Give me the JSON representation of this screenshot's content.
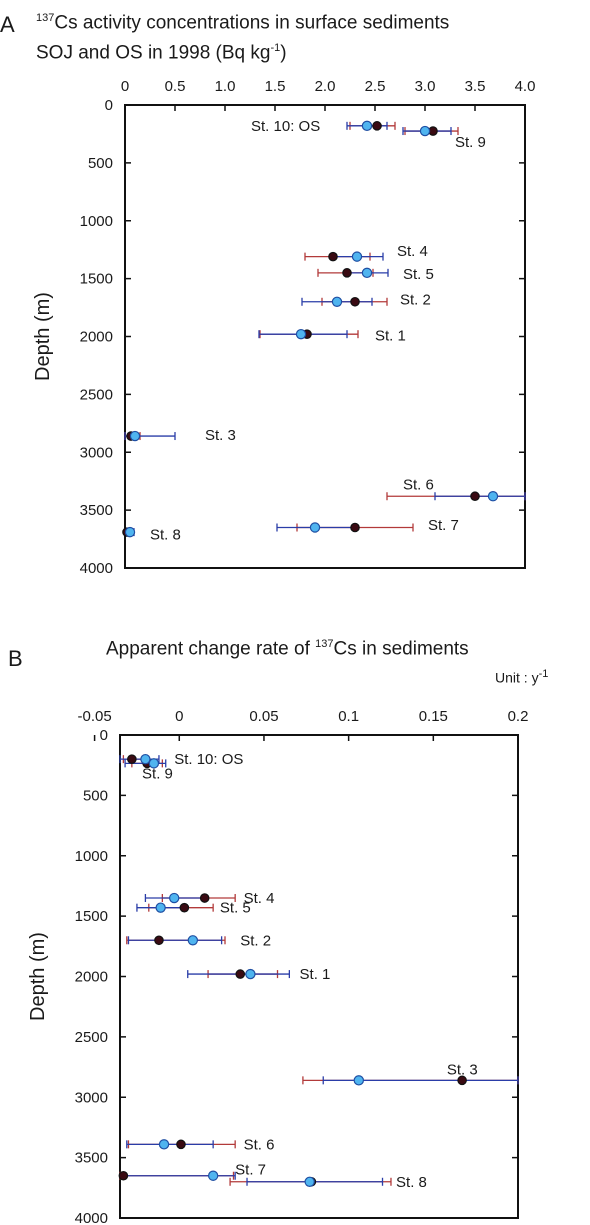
{
  "panelA": {
    "letter": "A",
    "title_pre": "137",
    "title_line1": "Cs activity concentrations in surface sediments",
    "title_line2_pre": "SOJ and OS in 1998  (Bq kg",
    "title_line2_sup": "-1",
    "title_line2_post": ")"
  },
  "panelB": {
    "letter": "B",
    "title_pre": "Apparent change rate of ",
    "title_sup": "137",
    "title_post": "Cs in sediments",
    "unit_pre": "Unit : y",
    "unit_sup": "-1"
  },
  "colors": {
    "blue": "#4fb4ef",
    "blue_edge": "#1f4fa3",
    "dark": "#3a0a12",
    "red_bar": "#b23a3a",
    "blue_bar": "#2a3da8"
  },
  "chart_data": [
    {
      "type": "scatter",
      "title": "137Cs activity concentrations in surface sediments SOJ and OS in 1998 (Bq kg-1)",
      "ylabel": "Depth (m)",
      "xlim": [
        0,
        4.0
      ],
      "ylim": [
        4000,
        0
      ],
      "x_ticks": [
        "0",
        "0.5",
        "1.0",
        "1.5",
        "2.0",
        "2.5",
        "3.0",
        "3.5",
        "4.0"
      ],
      "y_ticks": [
        "0",
        "500",
        "1000",
        "1500",
        "2000",
        "2500",
        "3000",
        "3500",
        "4000"
      ],
      "series": [
        {
          "marker": "dark",
          "points": [
            {
              "label": "St. 10: OS",
              "y": 180,
              "x": 2.52,
              "lo": 2.25,
              "hi": 2.7
            },
            {
              "label": "St. 9",
              "y": 225,
              "x": 3.08,
              "lo": 2.8,
              "hi": 3.33
            },
            {
              "label": "St. 4",
              "y": 1310,
              "x": 2.08,
              "lo": 1.8,
              "hi": 2.45
            },
            {
              "label": "St. 5",
              "y": 1450,
              "x": 2.22,
              "lo": 1.93,
              "hi": 2.48
            },
            {
              "label": "St. 2",
              "y": 1700,
              "x": 2.3,
              "lo": 1.97,
              "hi": 2.62
            },
            {
              "label": "St. 1",
              "y": 1980,
              "x": 1.82,
              "lo": 1.35,
              "hi": 2.33
            },
            {
              "label": "St. 3",
              "y": 2860,
              "x": 0.06,
              "lo": 0.0,
              "hi": 0.15
            },
            {
              "label": "St. 6",
              "y": 3380,
              "x": 3.5,
              "lo": 2.62,
              "hi": 4.1
            },
            {
              "label": "St. 7",
              "y": 3650,
              "x": 2.3,
              "lo": 1.72,
              "hi": 2.88
            },
            {
              "label": "St. 8",
              "y": 3690,
              "x": 0.02,
              "lo": 0.0,
              "hi": 0.06
            }
          ]
        },
        {
          "marker": "blue",
          "points": [
            {
              "label": "St. 10: OS",
              "y": 180,
              "x": 2.42,
              "lo": 2.22,
              "hi": 2.62
            },
            {
              "label": "St. 9",
              "y": 225,
              "x": 3.0,
              "lo": 2.78,
              "hi": 3.26
            },
            {
              "label": "St. 4",
              "y": 1310,
              "x": 2.32,
              "lo": 2.06,
              "hi": 2.58
            },
            {
              "label": "St. 5",
              "y": 1450,
              "x": 2.42,
              "lo": 2.2,
              "hi": 2.63
            },
            {
              "label": "St. 2",
              "y": 1700,
              "x": 2.12,
              "lo": 1.77,
              "hi": 2.47
            },
            {
              "label": "St. 1",
              "y": 1980,
              "x": 1.76,
              "lo": 1.34,
              "hi": 2.22
            },
            {
              "label": "St. 3",
              "y": 2860,
              "x": 0.1,
              "lo": 0.0,
              "hi": 0.5
            },
            {
              "label": "St. 6",
              "y": 3380,
              "x": 3.68,
              "lo": 3.1,
              "hi": 4.1
            },
            {
              "label": "St. 7",
              "y": 3650,
              "x": 1.9,
              "lo": 1.52,
              "hi": 2.28
            },
            {
              "label": "St. 8",
              "y": 3690,
              "x": 0.05,
              "lo": 0.0,
              "hi": 0.09
            }
          ]
        }
      ]
    },
    {
      "type": "scatter",
      "title": "Apparent change rate of 137Cs in sediments",
      "ylabel": "Depth (m)",
      "xlim": [
        -0.035,
        0.2
      ],
      "ylim": [
        4000,
        0
      ],
      "x_ticks": [
        "-0.05",
        "0",
        "0.05",
        "0.1",
        "0.15",
        "0.2"
      ],
      "y_ticks": [
        "0",
        "500",
        "1000",
        "1500",
        "2000",
        "2500",
        "3000",
        "3500",
        "4000"
      ],
      "series": [
        {
          "marker": "dark",
          "points": [
            {
              "label": "St. 10: OS",
              "y": 200,
              "x": -0.028,
              "lo": -0.033,
              "hi": -0.02
            },
            {
              "label": "St. 9",
              "y": 235,
              "x": -0.019,
              "lo": -0.028,
              "hi": -0.01
            },
            {
              "label": "St. 4",
              "y": 1350,
              "x": 0.015,
              "lo": -0.01,
              "hi": 0.033
            },
            {
              "label": "St. 5",
              "y": 1430,
              "x": 0.003,
              "lo": -0.018,
              "hi": 0.02
            },
            {
              "label": "St. 2",
              "y": 1700,
              "x": -0.012,
              "lo": -0.031,
              "hi": 0.027
            },
            {
              "label": "St. 1",
              "y": 1980,
              "x": 0.036,
              "lo": 0.017,
              "hi": 0.058
            },
            {
              "label": "St. 3",
              "y": 2860,
              "x": 0.167,
              "lo": 0.073,
              "hi": 0.21
            },
            {
              "label": "St. 6",
              "y": 3390,
              "x": 0.001,
              "lo": -0.03,
              "hi": 0.033
            },
            {
              "label": "St. 7",
              "y": 3650,
              "x": -0.033,
              "lo": -0.04,
              "hi": 0.032
            },
            {
              "label": "St. 8",
              "y": 3700,
              "x": 0.078,
              "lo": 0.03,
              "hi": 0.125
            }
          ]
        },
        {
          "marker": "blue",
          "points": [
            {
              "label": "St. 10: OS",
              "y": 200,
              "x": -0.02,
              "lo": -0.036,
              "hi": -0.012
            },
            {
              "label": "St. 9",
              "y": 235,
              "x": -0.015,
              "lo": -0.032,
              "hi": -0.008
            },
            {
              "label": "St. 4",
              "y": 1350,
              "x": -0.003,
              "lo": -0.02,
              "hi": 0.015
            },
            {
              "label": "St. 5",
              "y": 1430,
              "x": -0.011,
              "lo": -0.025,
              "hi": 0.003
            },
            {
              "label": "St. 2",
              "y": 1700,
              "x": 0.008,
              "lo": -0.03,
              "hi": 0.025
            },
            {
              "label": "St. 1",
              "y": 1980,
              "x": 0.042,
              "lo": 0.005,
              "hi": 0.065
            },
            {
              "label": "St. 3",
              "y": 2860,
              "x": 0.106,
              "lo": 0.085,
              "hi": 0.21
            },
            {
              "label": "St. 6",
              "y": 3390,
              "x": -0.009,
              "lo": -0.031,
              "hi": 0.02
            },
            {
              "label": "St. 7",
              "y": 3650,
              "x": 0.02,
              "lo": -0.033,
              "hi": 0.033
            },
            {
              "label": "St. 8",
              "y": 3700,
              "x": 0.077,
              "lo": 0.04,
              "hi": 0.12
            }
          ]
        }
      ],
      "station_labels": [
        {
          "text": "St. 10: OS",
          "x": -0.003,
          "y": 200
        },
        {
          "text": "St. 9",
          "x": -0.022,
          "y": 320
        },
        {
          "text": "St. 4",
          "x": 0.038,
          "y": 1350
        },
        {
          "text": "St. 5",
          "x": 0.024,
          "y": 1430
        },
        {
          "text": "St. 2",
          "x": 0.036,
          "y": 1700
        },
        {
          "text": "St. 1",
          "x": 0.071,
          "y": 1980
        },
        {
          "text": "St. 3",
          "x": 0.158,
          "y": 2770
        },
        {
          "text": "St. 6",
          "x": 0.038,
          "y": 3390
        },
        {
          "text": "St. 7",
          "x": 0.033,
          "y": 3600
        },
        {
          "text": "St. 8",
          "x": 0.128,
          "y": 3700
        }
      ]
    }
  ],
  "labelsA": [
    {
      "text": "St. 10: OS",
      "x": 1.26,
      "y": 180
    },
    {
      "text": "St. 9",
      "x": 3.3,
      "y": 320
    },
    {
      "text": "St. 4",
      "x": 2.72,
      "y": 1260
    },
    {
      "text": "St. 5",
      "x": 2.78,
      "y": 1460
    },
    {
      "text": "St. 2",
      "x": 2.75,
      "y": 1680
    },
    {
      "text": "St. 1",
      "x": 2.5,
      "y": 1990
    },
    {
      "text": "St. 3",
      "x": 0.8,
      "y": 2850
    },
    {
      "text": "St. 6",
      "x": 2.78,
      "y": 3280
    },
    {
      "text": "St. 7",
      "x": 3.03,
      "y": 3630
    },
    {
      "text": "St. 8",
      "x": 0.25,
      "y": 3710
    }
  ]
}
